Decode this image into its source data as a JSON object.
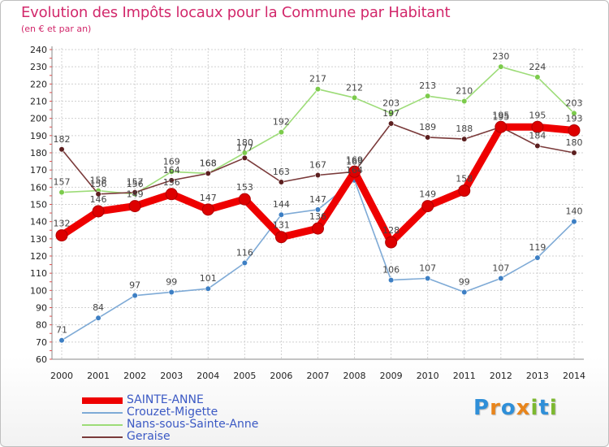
{
  "title": "Evolution des Impôts locaux pour la Commune par Habitant",
  "subtitle": "(en € et par an)",
  "logo": {
    "text": "Proxiti",
    "letter_colors": [
      "#2f8fd8",
      "#e8851c",
      "#2f8fd8",
      "#e8851c",
      "#7cb82f",
      "#2f8fd8",
      "#7cb82f"
    ]
  },
  "chart_data": {
    "type": "line",
    "x": [
      "2000",
      "2001",
      "2002",
      "2003",
      "2004",
      "2005",
      "2006",
      "2007",
      "2008",
      "2009",
      "2010",
      "2011",
      "2012",
      "2013",
      "2014"
    ],
    "ylim": [
      60,
      240
    ],
    "yticks": [
      60,
      70,
      80,
      90,
      100,
      110,
      120,
      130,
      140,
      150,
      160,
      170,
      180,
      190,
      200,
      210,
      220,
      230,
      240
    ],
    "grid": true,
    "legend_position": "bottom-left",
    "series": [
      {
        "name": "SAINTE-ANNE",
        "color": "#ee0000",
        "marker_color": "#dd0000",
        "emphasis": true,
        "values": [
          132,
          146,
          149,
          156,
          147,
          153,
          131,
          136,
          169,
          128,
          149,
          158,
          195,
          195,
          193
        ]
      },
      {
        "name": "Crouzet-Migette",
        "color": "#7eaad6",
        "marker_color": "#3d7fc4",
        "values": [
          71,
          84,
          97,
          99,
          101,
          116,
          144,
          147,
          164,
          106,
          107,
          99,
          107,
          119,
          140
        ]
      },
      {
        "name": "Nans-sous-Sainte-Anne",
        "color": "#9ddc78",
        "marker_color": "#7ccb4c",
        "values": [
          157,
          158,
          156,
          169,
          168,
          180,
          192,
          217,
          212,
          203,
          213,
          210,
          230,
          224,
          203
        ]
      },
      {
        "name": "Geraise",
        "color": "#7a3a3a",
        "marker_color": "#5c1f1f",
        "values": [
          182,
          156,
          157,
          164,
          168,
          177,
          163,
          167,
          169,
          197,
          189,
          188,
          195,
          184,
          180
        ]
      }
    ]
  }
}
